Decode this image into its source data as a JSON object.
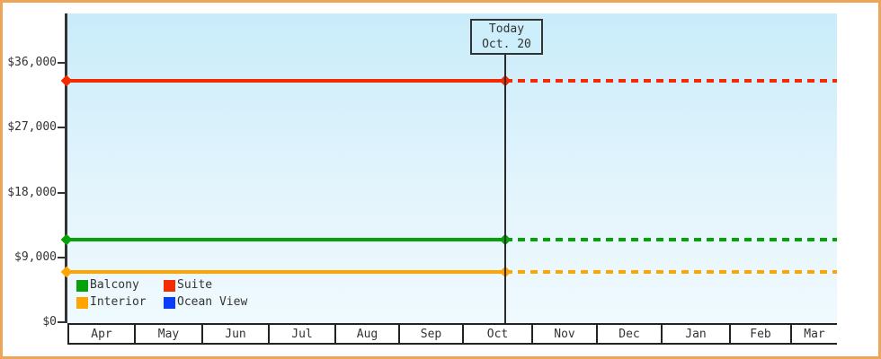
{
  "window": {
    "background": "#ffffff",
    "border_color": "#eda659"
  },
  "annotation": {
    "line1": "Today",
    "line2": "Oct. 20"
  },
  "chart_data": {
    "type": "line",
    "title": "",
    "x_categories": [
      "Apr",
      "May",
      "Jun",
      "Jul",
      "Aug",
      "Sep",
      "Oct",
      "Nov",
      "Dec",
      "Jan",
      "Feb",
      "Mar"
    ],
    "y_axis": {
      "unit": "USD",
      "range": [
        0,
        43000
      ],
      "ticks": [
        {
          "label": "$36,000",
          "value": 36000
        },
        {
          "label": "$27,000",
          "value": 27000
        },
        {
          "label": "$18,000",
          "value": 18000
        },
        {
          "label": "$9,000",
          "value": 9000
        },
        {
          "label": "$0",
          "value": 0
        }
      ]
    },
    "series": [
      {
        "name": "Balcony",
        "color": "#09a109",
        "value": 11500
      },
      {
        "name": "Suite",
        "color": "#f22b00",
        "value": 33500
      },
      {
        "name": "Interior",
        "color": "#ffa502",
        "value": 7000
      },
      {
        "name": "Ocean View",
        "color": "#0a3cfa",
        "value": null
      }
    ],
    "today": {
      "label": "Today",
      "date": "Oct. 20",
      "month": "Oct",
      "day": 20
    },
    "line_style": {
      "before_today": "solid",
      "after_today": "dotted"
    },
    "legend_position": "bottom-left-inside-plot",
    "grid": false,
    "plot_background_gradient": [
      "#c9ecfa",
      "#f0fafe"
    ],
    "axis_color": "#333333"
  }
}
